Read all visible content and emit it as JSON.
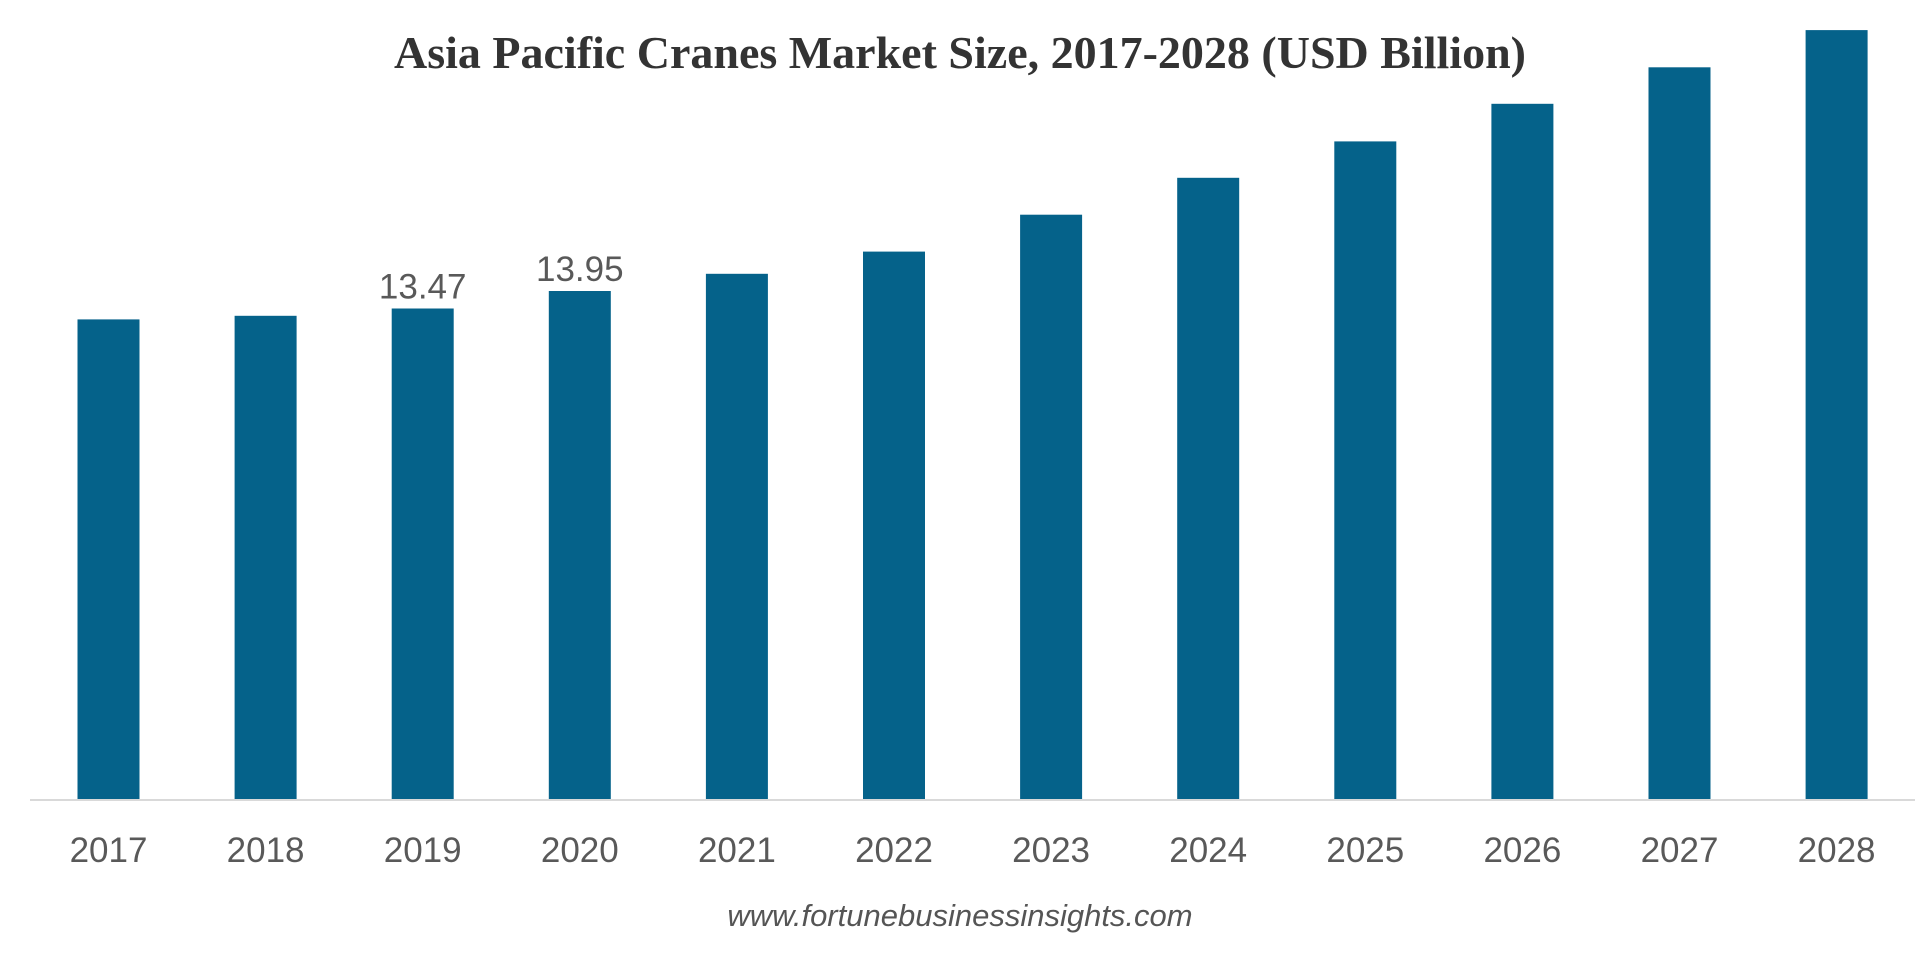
{
  "chart_data": {
    "type": "bar",
    "title": "Asia Pacific Cranes Market Size, 2017-2028 (USD Billion)",
    "source": "www.fortunebusinessinsights.com",
    "categories": [
      "2017",
      "2018",
      "2019",
      "2020",
      "2021",
      "2022",
      "2023",
      "2024",
      "2025",
      "2026",
      "2027",
      "2028"
    ],
    "values": [
      13.17,
      13.27,
      13.47,
      13.95,
      14.42,
      15.03,
      16.04,
      17.05,
      18.05,
      19.08,
      20.08,
      21.1
    ],
    "data_labels": [
      {
        "index": 2,
        "text": "13.47"
      },
      {
        "index": 3,
        "text": "13.95"
      }
    ],
    "xlabel": "",
    "ylabel": "",
    "ylim": [
      0,
      24
    ],
    "grid": false,
    "legend": "none",
    "colors": {
      "bar": "#05628A",
      "axis": "#D9D9D9"
    }
  }
}
